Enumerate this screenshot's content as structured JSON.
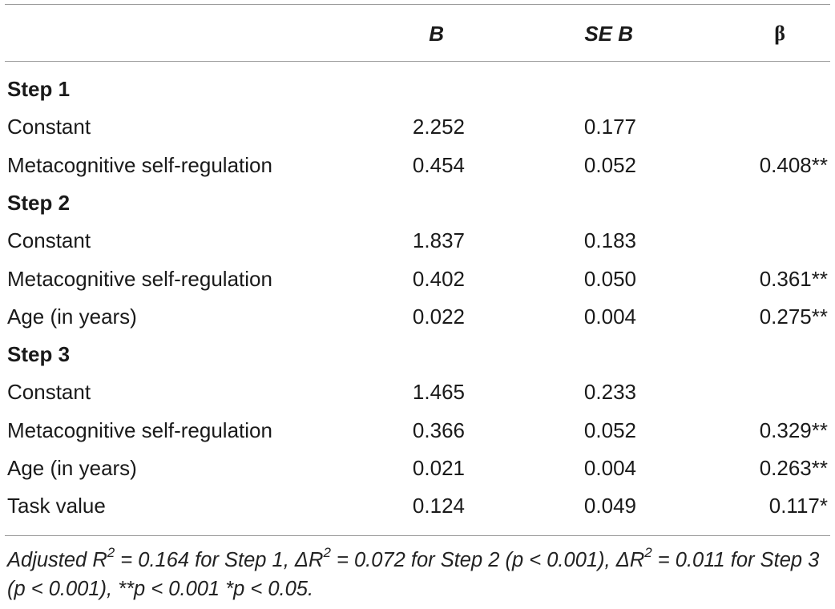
{
  "table": {
    "headers": [
      "",
      "B",
      "SE B",
      "β"
    ],
    "rows": [
      {
        "label": "Step 1",
        "kind": "step",
        "b": "",
        "se": "",
        "beta": ""
      },
      {
        "label": "Constant",
        "kind": "data",
        "b": "2.252",
        "se": "0.177",
        "beta": ""
      },
      {
        "label": "Metacognitive self-regulation",
        "kind": "data",
        "b": "0.454",
        "se": "0.052",
        "beta": "0.408**"
      },
      {
        "label": "Step 2",
        "kind": "step",
        "b": "",
        "se": "",
        "beta": ""
      },
      {
        "label": "Constant",
        "kind": "data",
        "b": "1.837",
        "se": "0.183",
        "beta": ""
      },
      {
        "label": "Metacognitive self-regulation",
        "kind": "data",
        "b": "0.402",
        "se": "0.050",
        "beta": "0.361**"
      },
      {
        "label": "Age (in years)",
        "kind": "data",
        "b": "0.022",
        "se": "0.004",
        "beta": "0.275**"
      },
      {
        "label": "Step 3",
        "kind": "step",
        "b": "",
        "se": "",
        "beta": ""
      },
      {
        "label": "Constant",
        "kind": "data",
        "b": "1.465",
        "se": "0.233",
        "beta": ""
      },
      {
        "label": "Metacognitive self-regulation",
        "kind": "data",
        "b": "0.366",
        "se": "0.052",
        "beta": "0.329**"
      },
      {
        "label": "Age (in years)",
        "kind": "data",
        "b": "0.021",
        "se": "0.004",
        "beta": "0.263**"
      },
      {
        "label": "Task value",
        "kind": "data",
        "b": "0.124",
        "se": "0.049",
        "beta": "0.117*"
      }
    ]
  },
  "footnote": {
    "p1": "Adjusted R",
    "sup1": "2",
    "p2": " = 0.164 for Step 1, ΔR",
    "sup2": "2",
    "p3": " = 0.072 for Step 2 (p < 0.001), ΔR",
    "sup3": "2",
    "p4": " = 0.011 for Step 3 (p < 0.001), **p < 0.001 *p < 0.05."
  }
}
